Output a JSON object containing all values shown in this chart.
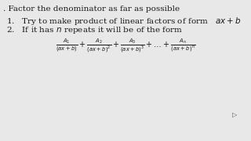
{
  "bg_color": "#e8e8e8",
  "top_text": ". Factor the denominator as far as possible",
  "line1_num": "1.",
  "line1_text": "Try to make product of linear factors of form",
  "line1_formula": "$ax+b$",
  "line2_num": "2.",
  "line2_text": "If it has $n$ repeats it will be of the form",
  "formula": "$\\frac{A_1}{(ax+b)}+\\frac{A_2}{(ax+b)^2}+\\frac{A_3}{(ax+b)^3}+\\ldots+\\frac{A_n}{(ax+b)^n}$",
  "text_color": "#1a1a1a",
  "font_size_top": 7.5,
  "font_size_body": 7.5,
  "font_size_formula": 7.0,
  "cursor_color": "#555555"
}
